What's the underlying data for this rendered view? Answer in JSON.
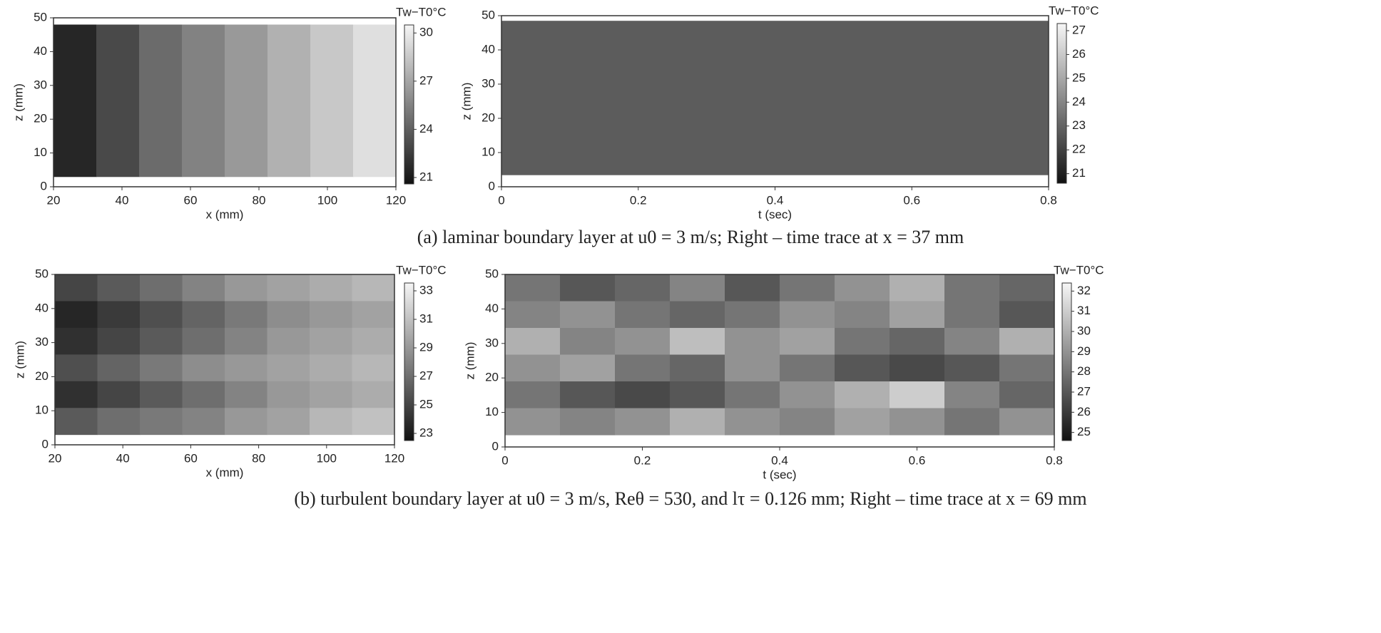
{
  "chart_data": [
    {
      "type": "heatmap",
      "xlabel": "x (mm)",
      "ylabel": "z (mm)",
      "colorbar_label": "Tw−T0°C",
      "xlim": [
        20,
        120
      ],
      "xticks": [
        20,
        40,
        60,
        80,
        100,
        120
      ],
      "ylim": [
        0,
        50
      ],
      "yticks": [
        0,
        10,
        20,
        30,
        40,
        50
      ],
      "y_extent": [
        3,
        48
      ],
      "clim": [
        20.6,
        30.5
      ],
      "colorbar_ticks": [
        21,
        24,
        27,
        30
      ],
      "colormap": [
        "#111111",
        "#f6f6f6"
      ],
      "values": [
        [
          21.5,
          23,
          24.5,
          25.5,
          26.5,
          27.5,
          28.5,
          29.5
        ]
      ]
    },
    {
      "type": "heatmap",
      "xlabel": "t (sec)",
      "ylabel": "z (mm)",
      "colorbar_label": "Tw−T0°C",
      "xlim": [
        0,
        0.8
      ],
      "xticks": [
        0,
        0.2,
        0.4,
        0.6,
        0.8
      ],
      "ylim": [
        0,
        50
      ],
      "yticks": [
        0,
        10,
        20,
        30,
        40,
        50
      ],
      "y_extent": [
        3.5,
        48.5
      ],
      "clim": [
        20.6,
        27.3
      ],
      "colorbar_ticks": [
        21,
        22,
        23,
        24,
        25,
        26,
        27
      ],
      "colormap": [
        "#111111",
        "#f6f6f6"
      ],
      "values": [
        [
          22.8
        ]
      ]
    },
    {
      "type": "heatmap",
      "xlabel": "x (mm)",
      "ylabel": "z (mm)",
      "colorbar_label": "Tw−T0°C",
      "xlim": [
        20,
        120
      ],
      "xticks": [
        20,
        40,
        60,
        80,
        100,
        120
      ],
      "ylim": [
        0,
        50
      ],
      "yticks": [
        0,
        10,
        20,
        30,
        40,
        50
      ],
      "y_extent": [
        3,
        50
      ],
      "clim": [
        22.5,
        33.55
      ],
      "colorbar_ticks": [
        23,
        25,
        27,
        29,
        31,
        33
      ],
      "colormap": [
        "#111111",
        "#f6f6f6"
      ],
      "values": [
        [
          25,
          26,
          27,
          28,
          29,
          29.5,
          30,
          30.5
        ],
        [
          23.5,
          24.5,
          25.5,
          26.5,
          27.5,
          28.5,
          29,
          29.5
        ],
        [
          24,
          25,
          26,
          27,
          28,
          29,
          29.5,
          30
        ],
        [
          25.5,
          26.5,
          27.5,
          28.5,
          29,
          29.5,
          30,
          30.5
        ],
        [
          24,
          25,
          26,
          27,
          28,
          29,
          29.5,
          30
        ],
        [
          26,
          27,
          27.5,
          28,
          29,
          29.5,
          30.5,
          31
        ]
      ]
    },
    {
      "type": "heatmap",
      "xlabel": "t (sec)",
      "ylabel": "z (mm)",
      "colorbar_label": "Tw−T0°C",
      "xlim": [
        0,
        0.8
      ],
      "xticks": [
        0,
        0.2,
        0.4,
        0.6,
        0.8
      ],
      "ylim": [
        0,
        50
      ],
      "yticks": [
        0,
        10,
        20,
        30,
        40,
        50
      ],
      "y_extent": [
        3.5,
        50
      ],
      "clim": [
        24.6,
        32.4
      ],
      "colorbar_ticks": [
        25,
        26,
        27,
        28,
        29,
        30,
        31,
        32
      ],
      "colormap": [
        "#111111",
        "#f6f6f6"
      ],
      "values": [
        [
          28,
          27,
          27.5,
          28.5,
          27,
          28,
          29,
          30,
          28,
          27.5
        ],
        [
          28.5,
          29,
          28,
          27.5,
          28,
          29,
          28.5,
          29.5,
          28,
          27
        ],
        [
          30,
          28.5,
          29,
          30.5,
          29,
          29.5,
          28,
          27.5,
          28.5,
          30
        ],
        [
          29,
          29.5,
          28,
          27.5,
          29,
          28,
          27,
          26.5,
          27,
          28
        ],
        [
          28,
          27,
          26.5,
          27,
          28,
          29,
          30,
          31,
          28.5,
          27.5
        ],
        [
          29,
          28.5,
          29,
          30,
          29,
          28.5,
          29.5,
          29,
          28,
          29
        ]
      ]
    }
  ],
  "captions": [
    "(a) laminar boundary layer at u0 = 3 m/s; Right – time trace at x = 37 mm",
    "(b) turbulent boundary layer at u0 = 3 m/s, Reθ = 530, and lτ = 0.126 mm; Right – time trace at x = 69 mm"
  ]
}
